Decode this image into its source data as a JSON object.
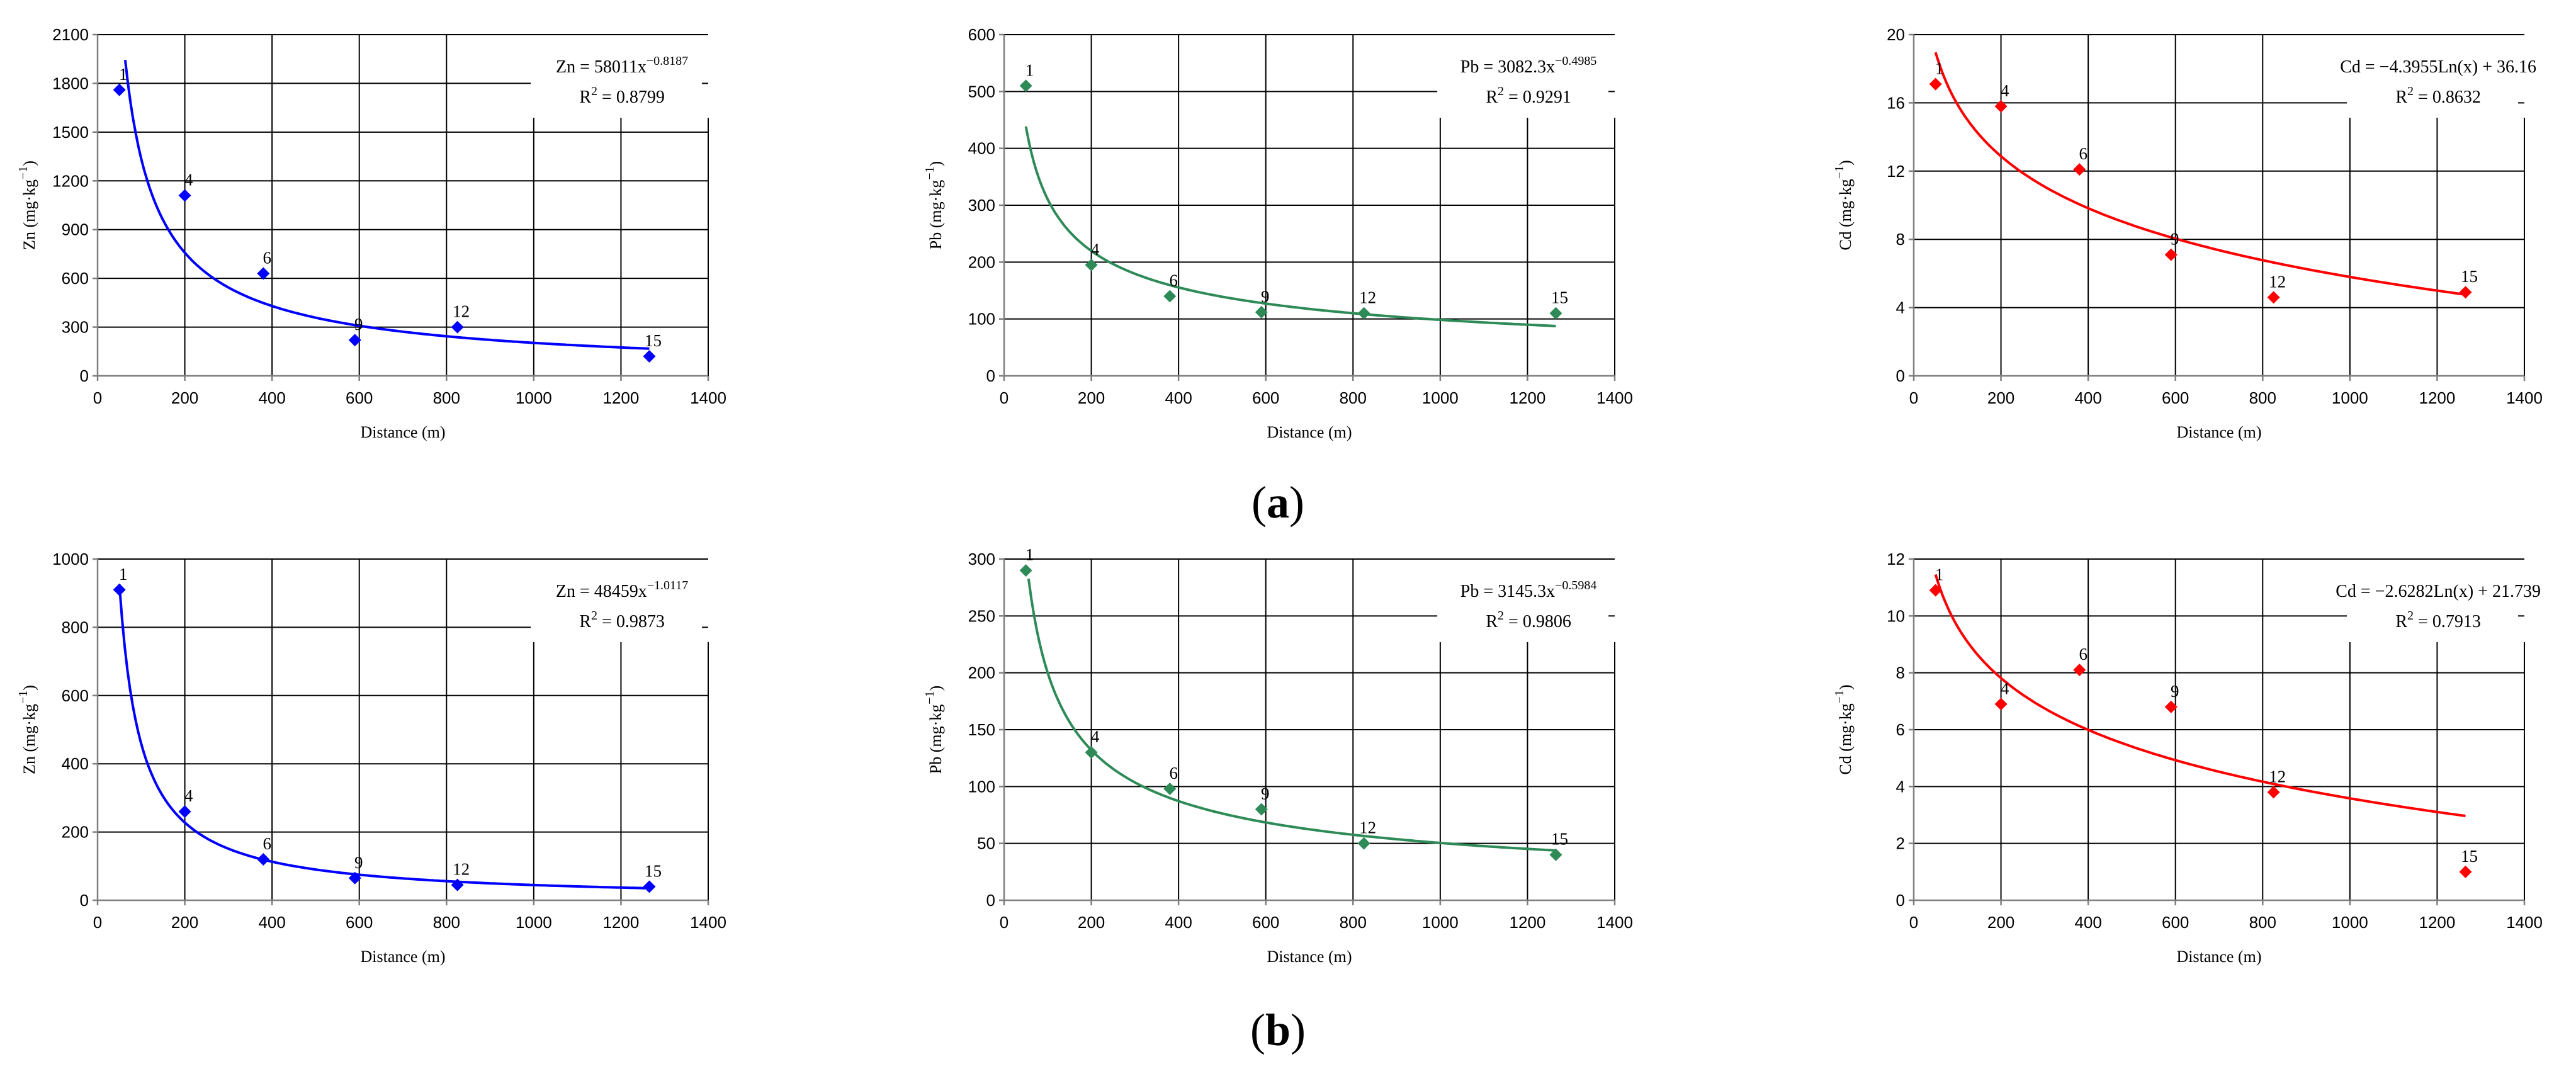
{
  "figure": {
    "panel_labels": [
      {
        "open": "(",
        "letter": "a",
        "close": ")"
      },
      {
        "open": "(",
        "letter": "b",
        "close": ")"
      }
    ]
  },
  "colors": {
    "Zn": "#0000ff",
    "Pb": "#2e8b57",
    "Cd": "#ff0000",
    "axis": "#7f7f7f",
    "grid": "#000000"
  },
  "chart_data": [
    {
      "id": "zn_a",
      "row": "a",
      "element": "Zn",
      "type": "scatter",
      "xlabel": "Distance (m)",
      "ylabel_main": "Zn (mg·kg",
      "ylabel_sup": "−1",
      "ylabel_tail": ")",
      "xlim": [
        0,
        1400
      ],
      "xticks": [
        0,
        200,
        400,
        600,
        800,
        1000,
        1200,
        1400
      ],
      "ylim": [
        0,
        2100
      ],
      "yticks": [
        0,
        300,
        600,
        900,
        1200,
        1500,
        1800,
        2100
      ],
      "points": [
        {
          "label": "1",
          "x": 50,
          "y": 1760
        },
        {
          "label": "4",
          "x": 200,
          "y": 1110
        },
        {
          "label": "6",
          "x": 380,
          "y": 630
        },
        {
          "label": "9",
          "x": 590,
          "y": 220
        },
        {
          "label": "12",
          "x": 825,
          "y": 300
        },
        {
          "label": "15",
          "x": 1265,
          "y": 120
        }
      ],
      "fit": {
        "kind": "power",
        "a": 58011,
        "b": -0.8187,
        "x_from": 45,
        "x_to": 1265
      },
      "equation_text": "Zn = 58011x",
      "equation_exp": "−0.8187",
      "r2_text": "R",
      "r2_sup": "2",
      "r2_value": " = 0.8799"
    },
    {
      "id": "pb_a",
      "row": "a",
      "element": "Pb",
      "type": "scatter",
      "xlabel": "Distance (m)",
      "ylabel_main": "Pb (mg·kg",
      "ylabel_sup": "−1",
      "ylabel_tail": ")",
      "xlim": [
        0,
        1400
      ],
      "xticks": [
        0,
        200,
        400,
        600,
        800,
        1000,
        1200,
        1400
      ],
      "ylim": [
        0,
        600
      ],
      "yticks": [
        0,
        100,
        200,
        300,
        400,
        500,
        600
      ],
      "points": [
        {
          "label": "1",
          "x": 50,
          "y": 510
        },
        {
          "label": "4",
          "x": 200,
          "y": 195
        },
        {
          "label": "6",
          "x": 380,
          "y": 140
        },
        {
          "label": "9",
          "x": 590,
          "y": 112
        },
        {
          "label": "12",
          "x": 825,
          "y": 110
        },
        {
          "label": "15",
          "x": 1265,
          "y": 110
        }
      ],
      "fit": {
        "kind": "power",
        "a": 3082.3,
        "b": -0.4985,
        "x_from": 50,
        "x_to": 1265
      },
      "equation_text": "Pb = 3082.3x",
      "equation_exp": "−0.4985",
      "r2_text": "R",
      "r2_sup": "2",
      "r2_value": " = 0.9291"
    },
    {
      "id": "cd_a",
      "row": "a",
      "element": "Cd",
      "type": "scatter",
      "xlabel": "Distance (m)",
      "ylabel_main": "Cd (mg·kg",
      "ylabel_sup": "−1",
      "ylabel_tail": ")",
      "xlim": [
        0,
        1400
      ],
      "xticks": [
        0,
        200,
        400,
        600,
        800,
        1000,
        1200,
        1400
      ],
      "ylim": [
        0,
        20
      ],
      "yticks": [
        0,
        4,
        8,
        12,
        16,
        20
      ],
      "points": [
        {
          "label": "1",
          "x": 50,
          "y": 17.1
        },
        {
          "label": "4",
          "x": 200,
          "y": 15.8
        },
        {
          "label": "6",
          "x": 380,
          "y": 12.1
        },
        {
          "label": "9",
          "x": 590,
          "y": 7.1
        },
        {
          "label": "12",
          "x": 825,
          "y": 4.6
        },
        {
          "label": "15",
          "x": 1265,
          "y": 4.9
        }
      ],
      "fit": {
        "kind": "log",
        "a": -4.3955,
        "b": 36.16,
        "x_from": 50,
        "x_to": 1265
      },
      "equation_text": "Cd = −4.3955Ln(x) + 36.16",
      "equation_exp": "",
      "r2_text": "R",
      "r2_sup": "2",
      "r2_value": " = 0.8632"
    },
    {
      "id": "zn_b",
      "row": "b",
      "element": "Zn",
      "type": "scatter",
      "xlabel": "Distance (m)",
      "ylabel_main": "Zn (mg·kg",
      "ylabel_sup": "−1",
      "ylabel_tail": ")",
      "xlim": [
        0,
        1400
      ],
      "xticks": [
        0,
        200,
        400,
        600,
        800,
        1000,
        1200,
        1400
      ],
      "ylim": [
        0,
        1000
      ],
      "yticks": [
        0,
        200,
        400,
        600,
        800,
        1000
      ],
      "points": [
        {
          "label": "1",
          "x": 50,
          "y": 910
        },
        {
          "label": "4",
          "x": 200,
          "y": 260
        },
        {
          "label": "6",
          "x": 380,
          "y": 120
        },
        {
          "label": "9",
          "x": 590,
          "y": 65
        },
        {
          "label": "12",
          "x": 825,
          "y": 45
        },
        {
          "label": "15",
          "x": 1265,
          "y": 40
        }
      ],
      "fit": {
        "kind": "power",
        "a": 48459,
        "b": -1.0117,
        "x_from": 50,
        "x_to": 1265
      },
      "equation_text": "Zn = 48459x",
      "equation_exp": "−1.0117",
      "r2_text": "R",
      "r2_sup": "2",
      "r2_value": " = 0.9873"
    },
    {
      "id": "pb_b",
      "row": "b",
      "element": "Pb",
      "type": "scatter",
      "xlabel": "Distance (m)",
      "ylabel_main": "Pb (mg·kg",
      "ylabel_sup": "−1",
      "ylabel_tail": ")",
      "xlim": [
        0,
        1400
      ],
      "xticks": [
        0,
        200,
        400,
        600,
        800,
        1000,
        1200,
        1400
      ],
      "ylim": [
        0,
        300
      ],
      "yticks": [
        0,
        50,
        100,
        150,
        200,
        250,
        300
      ],
      "points": [
        {
          "label": "1",
          "x": 50,
          "y": 290
        },
        {
          "label": "4",
          "x": 200,
          "y": 130
        },
        {
          "label": "6",
          "x": 380,
          "y": 98
        },
        {
          "label": "9",
          "x": 590,
          "y": 80
        },
        {
          "label": "12",
          "x": 825,
          "y": 50
        },
        {
          "label": "15",
          "x": 1265,
          "y": 40
        }
      ],
      "fit": {
        "kind": "power",
        "a": 3145.3,
        "b": -0.5984,
        "x_from": 50,
        "x_to": 1265
      },
      "equation_text": "Pb = 3145.3x",
      "equation_exp": "−0.5984",
      "r2_text": "R",
      "r2_sup": "2",
      "r2_value": " = 0.9806"
    },
    {
      "id": "cd_b",
      "row": "b",
      "element": "Cd",
      "type": "scatter",
      "xlabel": "Distance (m)",
      "ylabel_main": "Cd (mg·kg",
      "ylabel_sup": "−1",
      "ylabel_tail": ")",
      "xlim": [
        0,
        1400
      ],
      "xticks": [
        0,
        200,
        400,
        600,
        800,
        1000,
        1200,
        1400
      ],
      "ylim": [
        0,
        12
      ],
      "yticks": [
        0,
        2,
        4,
        6,
        8,
        10,
        12
      ],
      "points": [
        {
          "label": "1",
          "x": 50,
          "y": 10.9
        },
        {
          "label": "4",
          "x": 200,
          "y": 6.9
        },
        {
          "label": "6",
          "x": 380,
          "y": 8.1
        },
        {
          "label": "9",
          "x": 590,
          "y": 6.8
        },
        {
          "label": "12",
          "x": 825,
          "y": 3.8
        },
        {
          "label": "15",
          "x": 1265,
          "y": 1.0
        }
      ],
      "fit": {
        "kind": "log",
        "a": -2.6282,
        "b": 21.739,
        "x_from": 50,
        "x_to": 1265
      },
      "equation_text": "Cd = −2.6282Ln(x) + 21.739",
      "equation_exp": "",
      "r2_text": "R",
      "r2_sup": "2",
      "r2_value": " = 0.7913"
    }
  ]
}
